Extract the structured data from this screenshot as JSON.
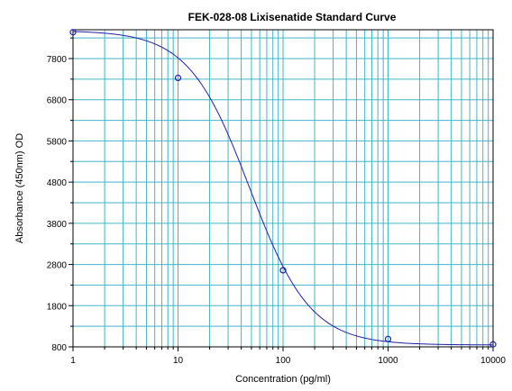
{
  "chart_data": {
    "type": "line",
    "title": "FEK-028-08 Lixisenatide Standard Curve",
    "xlabel": "Concentration (pg/ml)",
    "ylabel": "Absorbance (450nm) OD",
    "xscale": "log",
    "xlim": [
      1,
      10000
    ],
    "ylim": [
      800,
      8500
    ],
    "x_ticks": [
      1,
      10,
      100,
      1000,
      10000
    ],
    "y_ticks": [
      800,
      1800,
      2800,
      3800,
      4800,
      5800,
      6800,
      7800
    ],
    "grid": true,
    "colors": {
      "curve": "#1f1fa8",
      "grid": "#3fb6c8",
      "axis": "#000000"
    },
    "series": [
      {
        "points": [
          {
            "x": 1,
            "y": 8440
          },
          {
            "x": 10,
            "y": 7330
          },
          {
            "x": 100,
            "y": 2660
          },
          {
            "x": 1000,
            "y": 990
          },
          {
            "x": 10000,
            "y": 860
          }
        ],
        "fit": {
          "model": "4PL",
          "top": 8480,
          "bottom": 845,
          "ec50": 48,
          "hill": 1.5
        }
      }
    ]
  }
}
